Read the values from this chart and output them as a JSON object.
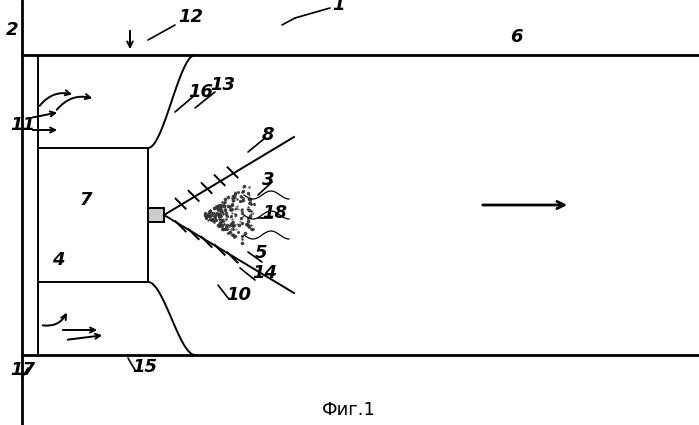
{
  "fig_title": "Фиг.1",
  "bg_color": "#ffffff",
  "line_color": "#000000",
  "figsize": [
    6.99,
    4.25
  ],
  "dpi": 100
}
